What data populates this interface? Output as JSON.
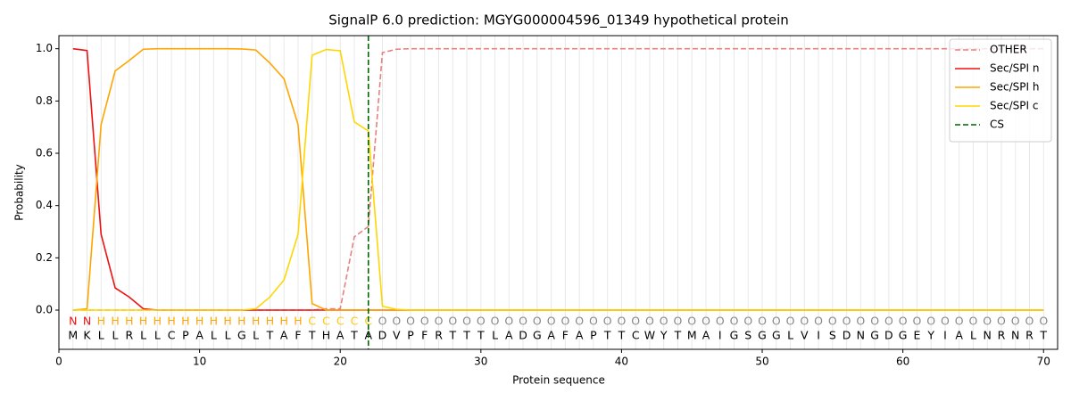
{
  "chart_data": {
    "type": "line",
    "title": "SignalP 6.0 prediction: MGYG000004596_01349 hypothetical protein",
    "xlabel": "Protein sequence",
    "ylabel": "Probability",
    "xlim": [
      0,
      71
    ],
    "ylim": [
      -0.15,
      1.05
    ],
    "xticks": [
      0,
      10,
      20,
      30,
      40,
      50,
      60,
      70
    ],
    "yticks": [
      {
        "value": 0,
        "label": "0.0"
      },
      {
        "value": 0.2,
        "label": "0.2"
      },
      {
        "value": 0.4,
        "label": "0.4"
      },
      {
        "value": 0.6,
        "label": "0.6"
      },
      {
        "value": 0.8,
        "label": "0.8"
      },
      {
        "value": 1,
        "label": "1.0"
      }
    ],
    "legend": "upper right",
    "x": [
      1,
      2,
      3,
      4,
      5,
      6,
      7,
      8,
      9,
      10,
      11,
      12,
      13,
      14,
      15,
      16,
      17,
      18,
      19,
      20,
      21,
      22,
      23,
      24,
      25,
      26,
      27,
      28,
      29,
      30,
      31,
      32,
      33,
      34,
      35,
      36,
      37,
      38,
      39,
      40,
      41,
      42,
      43,
      44,
      45,
      46,
      47,
      48,
      49,
      50,
      51,
      52,
      53,
      54,
      55,
      56,
      57,
      58,
      59,
      60,
      61,
      62,
      63,
      64,
      65,
      66,
      67,
      68,
      69,
      70
    ],
    "series": [
      {
        "name": "OTHER",
        "color": "#e88080",
        "dash": true,
        "values": [
          0,
          0,
          0,
          0,
          0,
          0,
          0,
          0,
          0,
          0,
          0,
          0,
          0,
          0,
          0,
          0,
          0,
          0,
          0.005,
          0.005,
          0.28,
          0.32,
          0.985,
          0.998,
          1,
          1,
          1,
          1,
          1,
          1,
          1,
          1,
          1,
          1,
          1,
          1,
          1,
          1,
          1,
          1,
          1,
          1,
          1,
          1,
          1,
          1,
          1,
          1,
          1,
          1,
          1,
          1,
          1,
          1,
          1,
          1,
          1,
          1,
          1,
          1,
          1,
          1,
          1,
          1,
          1,
          1,
          1,
          1,
          1,
          1
        ]
      },
      {
        "name": "Sec/SPI n",
        "color": "#ee1111",
        "dash": false,
        "values": [
          1.0,
          0.993,
          0.29,
          0.085,
          0.05,
          0.005,
          0,
          0,
          0,
          0,
          0,
          0,
          0,
          0,
          0,
          0,
          0,
          0,
          0,
          0,
          0,
          0,
          0,
          0,
          0,
          0,
          0,
          0,
          0,
          0,
          0,
          0,
          0,
          0,
          0,
          0,
          0,
          0,
          0,
          0,
          0,
          0,
          0,
          0,
          0,
          0,
          0,
          0,
          0,
          0,
          0,
          0,
          0,
          0,
          0,
          0,
          0,
          0,
          0,
          0,
          0,
          0,
          0,
          0,
          0,
          0,
          0,
          0,
          0,
          0
        ]
      },
      {
        "name": "Sec/SPI h",
        "color": "#ffa500",
        "dash": false,
        "values": [
          0,
          0.005,
          0.71,
          0.915,
          0.955,
          0.998,
          1,
          1,
          1,
          1,
          1,
          1,
          0.999,
          0.995,
          0.945,
          0.885,
          0.71,
          0.025,
          0,
          0,
          0,
          0,
          0,
          0,
          0,
          0,
          0,
          0,
          0,
          0,
          0,
          0,
          0,
          0,
          0,
          0,
          0,
          0,
          0,
          0,
          0,
          0,
          0,
          0,
          0,
          0,
          0,
          0,
          0,
          0,
          0,
          0,
          0,
          0,
          0,
          0,
          0,
          0,
          0,
          0,
          0,
          0,
          0,
          0,
          0,
          0,
          0,
          0,
          0,
          0
        ]
      },
      {
        "name": "Sec/SPI c",
        "color": "#ffd700",
        "dash": false,
        "values": [
          0,
          0,
          0,
          0,
          0,
          0,
          0,
          0,
          0,
          0,
          0,
          0,
          0,
          0.005,
          0.05,
          0.115,
          0.29,
          0.975,
          0.997,
          0.992,
          0.72,
          0.685,
          0.015,
          0.003,
          0,
          0,
          0,
          0,
          0,
          0,
          0,
          0,
          0,
          0,
          0,
          0,
          0,
          0,
          0,
          0,
          0,
          0,
          0,
          0,
          0,
          0,
          0,
          0,
          0,
          0,
          0,
          0,
          0,
          0,
          0,
          0,
          0,
          0,
          0,
          0,
          0,
          0,
          0,
          0,
          0,
          0,
          0,
          0,
          0,
          0
        ]
      }
    ],
    "cs_line": {
      "name": "CS",
      "x": 22,
      "color": "#006400"
    },
    "sequence": [
      "M",
      "K",
      "L",
      "L",
      "R",
      "L",
      "L",
      "C",
      "P",
      "A",
      "L",
      "L",
      "G",
      "L",
      "T",
      "A",
      "F",
      "T",
      "H",
      "A",
      "T",
      "A",
      "D",
      "V",
      "P",
      "F",
      "R",
      "T",
      "T",
      "T",
      "L",
      "A",
      "D",
      "G",
      "A",
      "F",
      "A",
      "P",
      "T",
      "T",
      "C",
      "W",
      "Y",
      "T",
      "M",
      "A",
      "I",
      "G",
      "S",
      "G",
      "G",
      "L",
      "V",
      "I",
      "S",
      "D",
      "N",
      "G",
      "D",
      "G",
      "E",
      "Y",
      "I",
      "A",
      "L",
      "N",
      "R",
      "N",
      "R",
      "T"
    ],
    "region_labels": [
      "N",
      "N",
      "H",
      "H",
      "H",
      "H",
      "H",
      "H",
      "H",
      "H",
      "H",
      "H",
      "H",
      "H",
      "H",
      "H",
      "H",
      "C",
      "C",
      "C",
      "C",
      "C",
      "O",
      "O",
      "O",
      "O",
      "O",
      "O",
      "O",
      "O",
      "O",
      "O",
      "O",
      "O",
      "O",
      "O",
      "O",
      "O",
      "O",
      "O",
      "O",
      "O",
      "O",
      "O",
      "O",
      "O",
      "O",
      "O",
      "O",
      "O",
      "O",
      "O",
      "O",
      "O",
      "O",
      "O",
      "O",
      "O",
      "O",
      "O",
      "O",
      "O",
      "O",
      "O",
      "O",
      "O",
      "O",
      "O",
      "O",
      "O"
    ],
    "label_colors": {
      "N": "#ee1111",
      "H": "#ffa500",
      "C": "#ffc800",
      "O": "#888888"
    }
  }
}
